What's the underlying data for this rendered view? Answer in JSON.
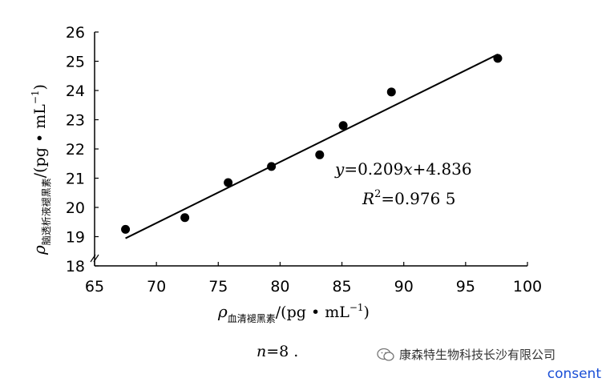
{
  "chart_data": {
    "type": "scatter",
    "x": [
      67.5,
      72.3,
      75.8,
      79.3,
      83.2,
      85.1,
      89.0,
      97.6
    ],
    "y": [
      19.25,
      19.65,
      20.85,
      21.4,
      21.8,
      22.8,
      23.95,
      25.1
    ],
    "xlim": [
      65,
      100
    ],
    "ylim": [
      18,
      26
    ],
    "xticks": [
      "65",
      "70",
      "75",
      "80",
      "85",
      "90",
      "95",
      "100"
    ],
    "yticks": [
      "18",
      "19",
      "20",
      "21",
      "22",
      "23",
      "24",
      "25",
      "26"
    ],
    "trendline": {
      "slope": 0.209,
      "intercept": 4.836,
      "x_range": [
        67.5,
        97.6
      ]
    },
    "equation": {
      "y_var": "y",
      "equation_rest": "=0.209",
      "x_var": "x",
      "equation_tail": "+4.836",
      "r_letter": "R",
      "r_sup": "2",
      "r_value": "=0.976 5"
    },
    "ylabel": {
      "rho": "ρ",
      "subscript": "脑透析液褪黑素",
      "unit": "/(pg • mL",
      "unit_sup": "−1",
      "unit_end": ")"
    },
    "xlabel": {
      "rho": "ρ",
      "subscript": "血清褪黑素",
      "unit": "/(pg • mL",
      "unit_sup": "−1",
      "unit_end": ")"
    }
  },
  "footnote": {
    "var": "n",
    "rest": "=8 ."
  },
  "watermark": {
    "text": "康森特生物科技长沙有限公司",
    "icon": "wechat-icon"
  },
  "consent_link": "consent"
}
